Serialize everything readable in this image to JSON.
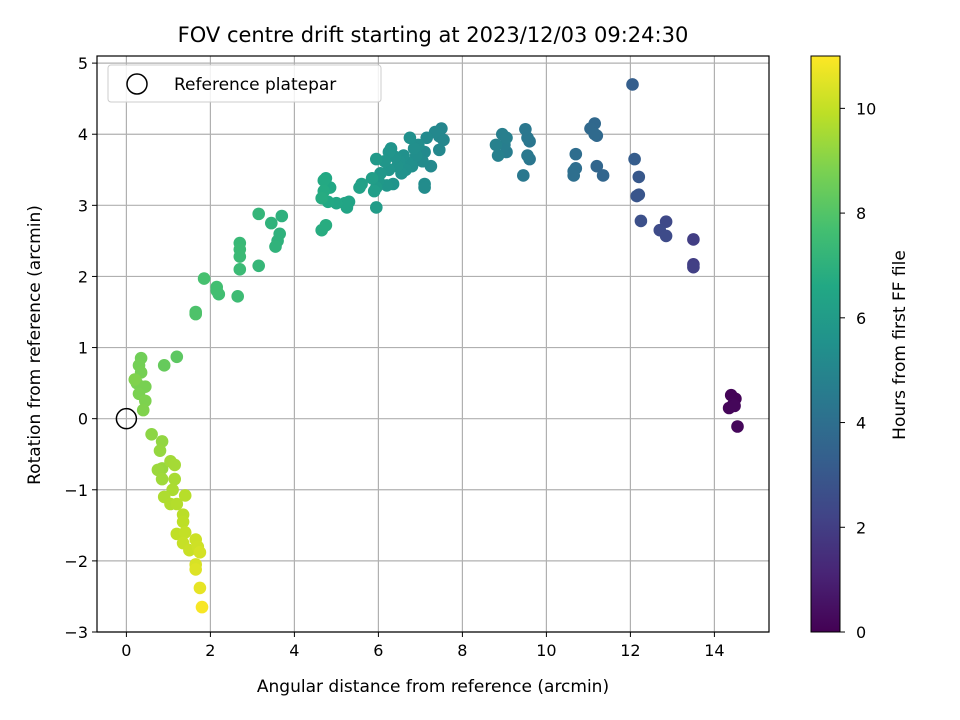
{
  "chart_data": {
    "type": "scatter",
    "title": "FOV centre drift starting at 2023/12/03 09:24:30",
    "xlabel": "Angular distance from reference (arcmin)",
    "ylabel": "Rotation from reference (arcmin)",
    "xlim": [
      -0.7,
      15.3
    ],
    "ylim": [
      -3.0,
      5.1
    ],
    "x_ticks": [
      0,
      2,
      4,
      6,
      8,
      10,
      12,
      14
    ],
    "y_ticks": [
      -3,
      -2,
      -1,
      0,
      1,
      2,
      3,
      4,
      5
    ],
    "x_tick_labels": [
      "0",
      "2",
      "4",
      "6",
      "8",
      "10",
      "12",
      "14"
    ],
    "y_tick_labels": [
      "−3",
      "−2",
      "−1",
      "0",
      "1",
      "2",
      "3",
      "4",
      "5"
    ],
    "grid": true,
    "colormap": "viridis",
    "colorbar": {
      "label": "Hours from first FF file",
      "range": [
        0,
        11
      ],
      "ticks": [
        0,
        2,
        4,
        6,
        8,
        10
      ],
      "tick_labels": [
        "0",
        "2",
        "4",
        "6",
        "8",
        "10"
      ]
    },
    "legend": {
      "position": "upper-left",
      "entries": [
        {
          "label": "Reference platepar",
          "marker": "open-circle",
          "color": "#000000"
        }
      ]
    },
    "reference_point": {
      "x": 0,
      "y": 0
    },
    "points": [
      {
        "x": 14.4,
        "y": 0.33,
        "c": 0.1
      },
      {
        "x": 14.5,
        "y": 0.28,
        "c": 0.1
      },
      {
        "x": 14.45,
        "y": 0.2,
        "c": 0.15
      },
      {
        "x": 14.35,
        "y": 0.15,
        "c": 0.15
      },
      {
        "x": 14.55,
        "y": -0.11,
        "c": 0.2
      },
      {
        "x": 14.48,
        "y": 0.18,
        "c": 0.2
      },
      {
        "x": 13.5,
        "y": 2.52,
        "c": 2.0
      },
      {
        "x": 13.5,
        "y": 2.17,
        "c": 2.0
      },
      {
        "x": 13.5,
        "y": 2.13,
        "c": 2.05
      },
      {
        "x": 12.85,
        "y": 2.77,
        "c": 2.4
      },
      {
        "x": 12.7,
        "y": 2.65,
        "c": 2.5
      },
      {
        "x": 12.85,
        "y": 2.57,
        "c": 2.5
      },
      {
        "x": 12.25,
        "y": 2.78,
        "c": 2.7
      },
      {
        "x": 12.15,
        "y": 3.13,
        "c": 2.9
      },
      {
        "x": 12.2,
        "y": 3.15,
        "c": 2.9
      },
      {
        "x": 12.2,
        "y": 3.4,
        "c": 3.0
      },
      {
        "x": 12.1,
        "y": 3.65,
        "c": 3.2
      },
      {
        "x": 12.05,
        "y": 4.7,
        "c": 3.3
      },
      {
        "x": 11.35,
        "y": 3.42,
        "c": 3.6
      },
      {
        "x": 11.2,
        "y": 3.55,
        "c": 3.6
      },
      {
        "x": 11.2,
        "y": 3.98,
        "c": 3.7
      },
      {
        "x": 11.15,
        "y": 4.15,
        "c": 3.7
      },
      {
        "x": 11.05,
        "y": 4.08,
        "c": 3.75
      },
      {
        "x": 11.15,
        "y": 4.0,
        "c": 3.8
      },
      {
        "x": 10.7,
        "y": 3.72,
        "c": 3.9
      },
      {
        "x": 10.7,
        "y": 3.52,
        "c": 3.95
      },
      {
        "x": 10.65,
        "y": 3.48,
        "c": 4.0
      },
      {
        "x": 10.65,
        "y": 3.42,
        "c": 4.0
      },
      {
        "x": 9.6,
        "y": 3.65,
        "c": 4.3
      },
      {
        "x": 9.6,
        "y": 3.9,
        "c": 4.3
      },
      {
        "x": 9.55,
        "y": 3.95,
        "c": 4.35
      },
      {
        "x": 9.5,
        "y": 4.07,
        "c": 4.35
      },
      {
        "x": 9.55,
        "y": 3.7,
        "c": 4.4
      },
      {
        "x": 9.45,
        "y": 3.42,
        "c": 4.4
      },
      {
        "x": 9.05,
        "y": 3.75,
        "c": 4.6
      },
      {
        "x": 9.0,
        "y": 3.85,
        "c": 4.65
      },
      {
        "x": 8.95,
        "y": 4.0,
        "c": 4.7
      },
      {
        "x": 9.05,
        "y": 3.95,
        "c": 4.7
      },
      {
        "x": 8.85,
        "y": 3.7,
        "c": 4.75
      },
      {
        "x": 8.8,
        "y": 3.85,
        "c": 4.8
      },
      {
        "x": 7.5,
        "y": 4.08,
        "c": 5.0
      },
      {
        "x": 7.45,
        "y": 3.97,
        "c": 5.05
      },
      {
        "x": 7.55,
        "y": 3.92,
        "c": 5.05
      },
      {
        "x": 7.35,
        "y": 4.03,
        "c": 5.1
      },
      {
        "x": 7.45,
        "y": 3.78,
        "c": 5.1
      },
      {
        "x": 7.25,
        "y": 3.55,
        "c": 5.15
      },
      {
        "x": 7.15,
        "y": 3.95,
        "c": 5.2
      },
      {
        "x": 7.1,
        "y": 3.75,
        "c": 5.2
      },
      {
        "x": 7.05,
        "y": 3.62,
        "c": 5.25
      },
      {
        "x": 7.1,
        "y": 3.3,
        "c": 5.3
      },
      {
        "x": 7.1,
        "y": 3.25,
        "c": 5.3
      },
      {
        "x": 6.95,
        "y": 3.85,
        "c": 5.35
      },
      {
        "x": 6.9,
        "y": 3.7,
        "c": 5.35
      },
      {
        "x": 6.85,
        "y": 3.8,
        "c": 5.4
      },
      {
        "x": 6.8,
        "y": 3.55,
        "c": 5.4
      },
      {
        "x": 6.75,
        "y": 3.95,
        "c": 5.45
      },
      {
        "x": 6.7,
        "y": 3.6,
        "c": 5.45
      },
      {
        "x": 6.65,
        "y": 3.5,
        "c": 5.5
      },
      {
        "x": 6.6,
        "y": 3.7,
        "c": 5.5
      },
      {
        "x": 6.55,
        "y": 3.45,
        "c": 5.55
      },
      {
        "x": 6.5,
        "y": 3.62,
        "c": 5.55
      },
      {
        "x": 6.45,
        "y": 3.55,
        "c": 5.6
      },
      {
        "x": 6.4,
        "y": 3.68,
        "c": 5.6
      },
      {
        "x": 6.35,
        "y": 3.3,
        "c": 5.65
      },
      {
        "x": 6.3,
        "y": 3.8,
        "c": 5.65
      },
      {
        "x": 6.25,
        "y": 3.75,
        "c": 5.7
      },
      {
        "x": 6.25,
        "y": 3.5,
        "c": 5.7
      },
      {
        "x": 6.2,
        "y": 3.28,
        "c": 5.75
      },
      {
        "x": 6.15,
        "y": 3.62,
        "c": 5.75
      },
      {
        "x": 6.05,
        "y": 3.45,
        "c": 5.8
      },
      {
        "x": 6.0,
        "y": 3.35,
        "c": 5.85
      },
      {
        "x": 5.95,
        "y": 3.65,
        "c": 5.9
      },
      {
        "x": 5.95,
        "y": 3.25,
        "c": 6.0
      },
      {
        "x": 5.95,
        "y": 2.97,
        "c": 6.05
      },
      {
        "x": 5.85,
        "y": 3.38,
        "c": 6.1
      },
      {
        "x": 5.9,
        "y": 3.2,
        "c": 6.1
      },
      {
        "x": 5.6,
        "y": 3.3,
        "c": 6.2
      },
      {
        "x": 5.55,
        "y": 3.25,
        "c": 6.25
      },
      {
        "x": 5.3,
        "y": 3.05,
        "c": 6.35
      },
      {
        "x": 5.25,
        "y": 2.97,
        "c": 6.4
      },
      {
        "x": 5.2,
        "y": 3.03,
        "c": 6.4
      },
      {
        "x": 5.0,
        "y": 3.03,
        "c": 6.5
      },
      {
        "x": 4.85,
        "y": 3.25,
        "c": 6.55
      },
      {
        "x": 4.8,
        "y": 3.05,
        "c": 6.6
      },
      {
        "x": 4.75,
        "y": 3.38,
        "c": 6.6
      },
      {
        "x": 4.7,
        "y": 3.35,
        "c": 6.65
      },
      {
        "x": 4.7,
        "y": 3.2,
        "c": 6.7
      },
      {
        "x": 4.65,
        "y": 3.1,
        "c": 6.75
      },
      {
        "x": 4.65,
        "y": 2.65,
        "c": 6.8
      },
      {
        "x": 4.75,
        "y": 2.72,
        "c": 6.8
      },
      {
        "x": 3.7,
        "y": 2.85,
        "c": 7.0
      },
      {
        "x": 3.65,
        "y": 2.6,
        "c": 7.05
      },
      {
        "x": 3.6,
        "y": 2.5,
        "c": 7.05
      },
      {
        "x": 3.55,
        "y": 2.42,
        "c": 7.1
      },
      {
        "x": 3.45,
        "y": 2.75,
        "c": 7.1
      },
      {
        "x": 3.15,
        "y": 2.88,
        "c": 7.2
      },
      {
        "x": 3.15,
        "y": 2.15,
        "c": 7.25
      },
      {
        "x": 2.7,
        "y": 2.47,
        "c": 7.35
      },
      {
        "x": 2.7,
        "y": 2.38,
        "c": 7.4
      },
      {
        "x": 2.7,
        "y": 2.28,
        "c": 7.4
      },
      {
        "x": 2.7,
        "y": 2.1,
        "c": 7.45
      },
      {
        "x": 2.65,
        "y": 1.72,
        "c": 7.5
      },
      {
        "x": 2.2,
        "y": 1.75,
        "c": 7.6
      },
      {
        "x": 2.15,
        "y": 1.85,
        "c": 7.65
      },
      {
        "x": 2.15,
        "y": 1.8,
        "c": 7.65
      },
      {
        "x": 1.85,
        "y": 1.97,
        "c": 7.75
      },
      {
        "x": 1.65,
        "y": 1.5,
        "c": 7.85
      },
      {
        "x": 1.65,
        "y": 1.47,
        "c": 7.9
      },
      {
        "x": 1.2,
        "y": 0.87,
        "c": 8.2
      },
      {
        "x": 0.9,
        "y": 0.75,
        "c": 8.4
      },
      {
        "x": 0.35,
        "y": 0.85,
        "c": 8.6
      },
      {
        "x": 0.3,
        "y": 0.75,
        "c": 8.65
      },
      {
        "x": 0.35,
        "y": 0.65,
        "c": 8.7
      },
      {
        "x": 0.45,
        "y": 0.45,
        "c": 8.75
      },
      {
        "x": 0.25,
        "y": 0.5,
        "c": 8.75
      },
      {
        "x": 0.3,
        "y": 0.35,
        "c": 8.8
      },
      {
        "x": 0.45,
        "y": 0.25,
        "c": 8.85
      },
      {
        "x": 0.4,
        "y": 0.12,
        "c": 8.9
      },
      {
        "x": 0.2,
        "y": 0.55,
        "c": 8.9
      },
      {
        "x": 0.6,
        "y": -0.22,
        "c": 9.1
      },
      {
        "x": 0.85,
        "y": -0.32,
        "c": 9.2
      },
      {
        "x": 0.8,
        "y": -0.45,
        "c": 9.25
      },
      {
        "x": 0.85,
        "y": -0.7,
        "c": 9.3
      },
      {
        "x": 0.75,
        "y": -0.72,
        "c": 9.35
      },
      {
        "x": 0.85,
        "y": -0.85,
        "c": 9.4
      },
      {
        "x": 1.05,
        "y": -0.6,
        "c": 9.45
      },
      {
        "x": 1.15,
        "y": -0.65,
        "c": 9.5
      },
      {
        "x": 1.15,
        "y": -0.85,
        "c": 9.55
      },
      {
        "x": 1.1,
        "y": -1.0,
        "c": 9.6
      },
      {
        "x": 0.9,
        "y": -1.1,
        "c": 9.65
      },
      {
        "x": 1.05,
        "y": -1.2,
        "c": 9.7
      },
      {
        "x": 1.2,
        "y": -1.2,
        "c": 9.75
      },
      {
        "x": 1.4,
        "y": -1.08,
        "c": 9.8
      },
      {
        "x": 1.35,
        "y": -1.35,
        "c": 9.85
      },
      {
        "x": 1.35,
        "y": -1.45,
        "c": 9.9
      },
      {
        "x": 1.2,
        "y": -1.62,
        "c": 9.95
      },
      {
        "x": 1.4,
        "y": -1.6,
        "c": 10.0
      },
      {
        "x": 1.35,
        "y": -1.75,
        "c": 10.05
      },
      {
        "x": 1.5,
        "y": -1.85,
        "c": 10.1
      },
      {
        "x": 1.65,
        "y": -1.7,
        "c": 10.15
      },
      {
        "x": 1.7,
        "y": -1.8,
        "c": 10.2
      },
      {
        "x": 1.75,
        "y": -1.88,
        "c": 10.3
      },
      {
        "x": 1.65,
        "y": -2.05,
        "c": 10.35
      },
      {
        "x": 1.65,
        "y": -2.12,
        "c": 10.45
      },
      {
        "x": 1.75,
        "y": -2.38,
        "c": 10.6
      },
      {
        "x": 1.8,
        "y": -2.65,
        "c": 10.9
      }
    ]
  }
}
